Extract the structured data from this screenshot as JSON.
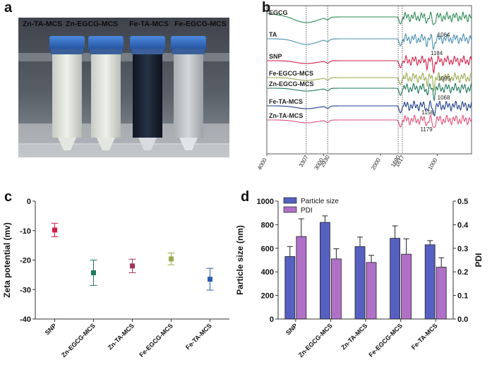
{
  "panel_letters": {
    "a": "a",
    "b": "b",
    "c": "c",
    "d": "d"
  },
  "photo": {
    "tube_labels": [
      "Zn-TA-MCS",
      "Zn-EGCG-MCS",
      "Fe-TA-MCS",
      "Fe-EGCG-MCS"
    ],
    "colors": {
      "cap": "#2f6fc8",
      "cap_dark": "#1d4a92",
      "liquid_light": "#e9ede2",
      "liquid_dark": "#1b2434",
      "background": "#4a4f58"
    }
  },
  "ftir": {
    "traces": [
      {
        "label": "EGCG",
        "color": "#2e8b57"
      },
      {
        "label": "TA",
        "color": "#4a8fb0"
      },
      {
        "label": "SNP",
        "color": "#d0204a"
      },
      {
        "label": "Fe-EGCG-MCS",
        "color": "#9aaa50"
      },
      {
        "label": "Zn-EGCG-MCS",
        "color": "#1e7a5a"
      },
      {
        "label": "Fe-TA-MCS",
        "color": "#1e3f8a"
      },
      {
        "label": "Zn-TA-MCS",
        "color": "#e0507a"
      }
    ],
    "peak_labels": [
      "1064",
      "1184",
      "1095",
      "1068",
      "1158",
      "1179"
    ],
    "ref_lines": [
      "3307",
      "2930",
      "1690",
      "1617"
    ],
    "x_ticks": [
      "4000",
      "3000",
      "2000",
      "1000"
    ]
  },
  "chart_data": [
    {
      "type": "scatter",
      "title": "",
      "xlabel": "",
      "ylabel": "Zeta potential (mv)",
      "ylim": [
        -40,
        0
      ],
      "yticks": [
        "0",
        "-10",
        "-20",
        "-30",
        "-40"
      ],
      "categories": [
        "SNP",
        "Zn-EGCG-MCS",
        "Zn-TA-MCS",
        "Fe-EGCG-MCS",
        "Fe-TA-MCS"
      ],
      "values": [
        -9.8,
        -24.3,
        -22.0,
        -19.6,
        -26.5
      ],
      "errors": [
        2.3,
        4.3,
        2.3,
        2.0,
        3.7
      ],
      "colors": [
        "#d0204a",
        "#1e7a5a",
        "#a0355a",
        "#9aaa50",
        "#2a5fb0"
      ]
    },
    {
      "type": "bar",
      "title": "",
      "xlabel": "",
      "ylabel": "Particle size (nm)",
      "y2label": "PDI",
      "ylim": [
        0,
        1000
      ],
      "y2lim": [
        0,
        0.5
      ],
      "yticks": [
        "0",
        "200",
        "400",
        "600",
        "800",
        "1000"
      ],
      "y2ticks": [
        "0.0",
        "0.1",
        "0.2",
        "0.3",
        "0.4",
        "0.5"
      ],
      "categories": [
        "SNP",
        "Zn-EGCG-MCS",
        "Zn-TA-MCS",
        "Fe-EGCG-MCS",
        "Fe-TA-MCS"
      ],
      "series": [
        {
          "name": "Particle size",
          "axis": "left",
          "color": "#5560c0",
          "values": [
            530,
            820,
            615,
            685,
            630
          ],
          "errors": [
            85,
            55,
            80,
            105,
            35
          ]
        },
        {
          "name": "PDI",
          "axis": "right",
          "color": "#b070c8",
          "values": [
            0.35,
            0.255,
            0.24,
            0.275,
            0.22
          ],
          "errors": [
            0.075,
            0.043,
            0.03,
            0.065,
            0.04
          ]
        }
      ],
      "legend": "top-left"
    }
  ]
}
